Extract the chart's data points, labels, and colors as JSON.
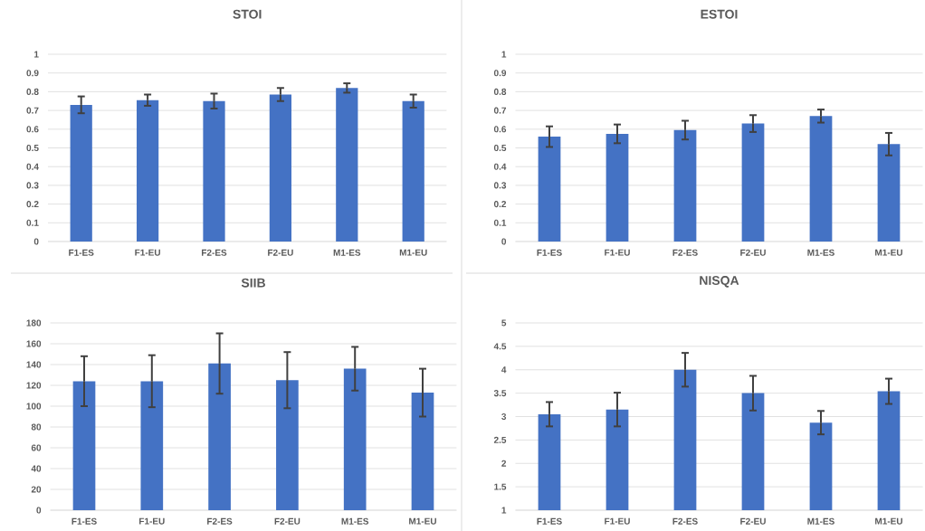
{
  "chart_data": [
    {
      "type": "bar",
      "title": "STOI",
      "categories": [
        "F1-ES",
        "F1-EU",
        "F2-ES",
        "F2-EU",
        "M1-ES",
        "M1-EU"
      ],
      "values": [
        0.73,
        0.755,
        0.75,
        0.785,
        0.82,
        0.75
      ],
      "errors": [
        0.045,
        0.03,
        0.04,
        0.035,
        0.025,
        0.035
      ],
      "color": "#4472c4",
      "ylim": [
        0,
        1
      ],
      "yticks": [
        0,
        0.1,
        0.2,
        0.3,
        0.4,
        0.5,
        0.6,
        0.7,
        0.8,
        0.9,
        1
      ],
      "grid": "y"
    },
    {
      "type": "bar",
      "title": "ESTOI",
      "categories": [
        "F1-ES",
        "F1-EU",
        "F2-ES",
        "F2-EU",
        "M1-ES",
        "M1-EU"
      ],
      "values": [
        0.56,
        0.575,
        0.595,
        0.63,
        0.67,
        0.52
      ],
      "errors": [
        0.055,
        0.05,
        0.05,
        0.045,
        0.035,
        0.06
      ],
      "color": "#4472c4",
      "ylim": [
        0,
        1
      ],
      "yticks": [
        0,
        0.1,
        0.2,
        0.3,
        0.4,
        0.5,
        0.6,
        0.7,
        0.8,
        0.9,
        1
      ],
      "grid": "y"
    },
    {
      "type": "bar",
      "title": "SIIB",
      "categories": [
        "F1-ES",
        "F1-EU",
        "F2-ES",
        "F2-EU",
        "M1-ES",
        "M1-EU"
      ],
      "values": [
        124,
        124,
        141,
        125,
        136,
        113
      ],
      "errors": [
        24,
        25,
        29,
        27,
        21,
        23
      ],
      "color": "#4472c4",
      "ylim": [
        0,
        180
      ],
      "yticks": [
        0,
        20,
        40,
        60,
        80,
        100,
        120,
        140,
        160,
        180
      ],
      "grid": "y"
    },
    {
      "type": "bar",
      "title": "NISQA",
      "categories": [
        "F1-ES",
        "F1-EU",
        "F2-ES",
        "F2-EU",
        "M1-ES",
        "M1-EU"
      ],
      "values": [
        3.05,
        3.15,
        4.0,
        3.5,
        2.87,
        3.54
      ],
      "errors": [
        0.26,
        0.36,
        0.36,
        0.37,
        0.25,
        0.27
      ],
      "color": "#4472c4",
      "ylim": [
        1,
        5
      ],
      "yticks": [
        1,
        1.5,
        2,
        2.5,
        3,
        3.5,
        4,
        4.5,
        5
      ],
      "grid": "y"
    }
  ]
}
